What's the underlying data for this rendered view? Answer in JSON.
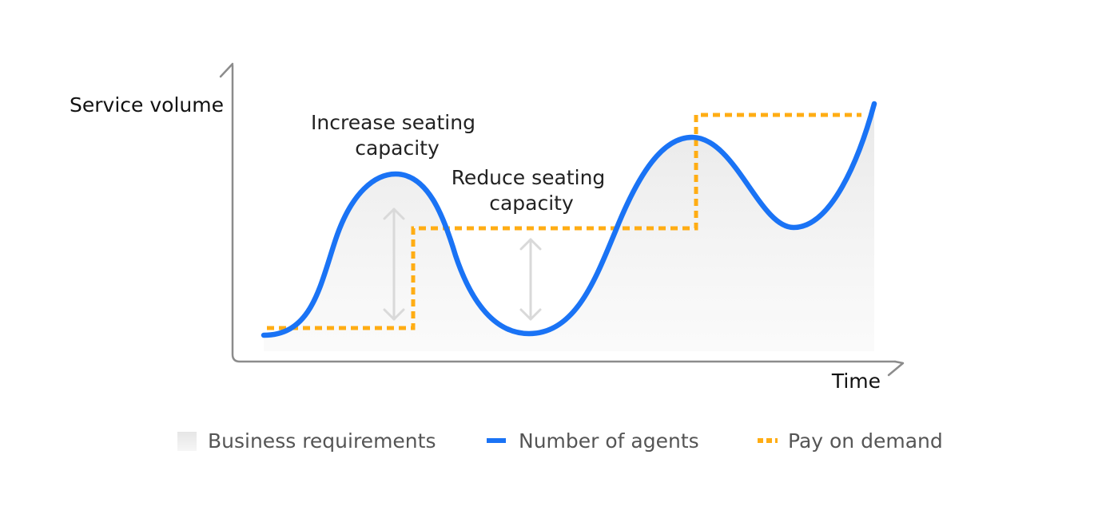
{
  "axes": {
    "y_label": "Service volume",
    "x_label": "Time"
  },
  "annotations": {
    "increase": [
      "Increase seating",
      "capacity"
    ],
    "reduce": [
      "Reduce seating",
      "capacity"
    ]
  },
  "legend": {
    "business": "Business requirements",
    "agents": "Number of agents",
    "pay": "Pay on demand"
  },
  "colors": {
    "agents_line": "#1a73f5",
    "pay_line": "#ffad14",
    "axis": "#8c8c8c",
    "area": "#eeeeee",
    "arrow": "#d9d9d9"
  }
}
